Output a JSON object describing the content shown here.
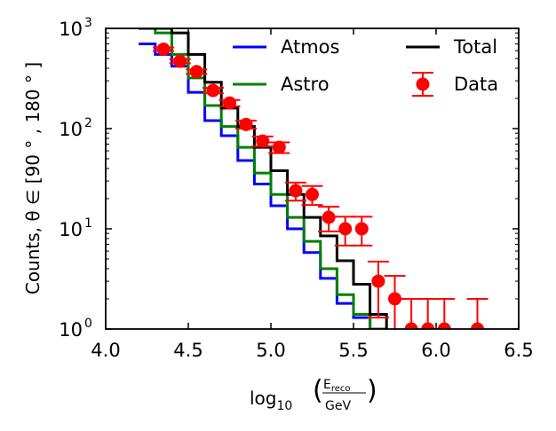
{
  "chart_data": {
    "type": "histogram",
    "xlim": [
      4.0,
      6.5
    ],
    "ylim": [
      1,
      1000
    ],
    "yscale": "log",
    "grid": false,
    "legend_placement": "top-right",
    "x_tick_labels": [
      "4.0",
      "4.5",
      "5.0",
      "5.5",
      "6.0",
      "6.5"
    ],
    "x_tick_values": [
      4.0,
      4.5,
      5.0,
      5.5,
      6.0,
      6.5
    ],
    "y_tick_values": [
      1,
      10,
      100,
      1000
    ],
    "y_tick_labels": {
      "base": "10",
      "exponents": [
        "0",
        "1",
        "2",
        "3"
      ]
    },
    "xlabel": {
      "prefix": "log",
      "sub": "10",
      "frac_num": "E",
      "frac_num_sub": "reco",
      "frac_den": "GeV"
    },
    "ylabel": "Counts,  θ ∈ [90 ° , 180 ° ]",
    "bin_edges": [
      4.2,
      4.3,
      4.4,
      4.5,
      4.6,
      4.7,
      4.8,
      4.9,
      5.0,
      5.1,
      5.2,
      5.3,
      5.4,
      5.5,
      5.6,
      5.7
    ],
    "series": [
      {
        "name": "Atmos",
        "color": "#0000ff",
        "style": "step",
        "values": [
          700,
          550,
          420,
          230,
          120,
          85,
          48,
          28,
          17,
          10,
          5.8,
          3.2,
          1.8,
          1.3,
          1.0
        ]
      },
      {
        "name": "Astro",
        "color": "#008000",
        "style": "step",
        "values": [
          1000,
          900,
          550,
          320,
          170,
          105,
          65,
          36,
          22,
          13,
          7.5,
          4.0,
          2.2,
          1.4,
          1.0
        ]
      },
      {
        "name": "Total",
        "color": "#000000",
        "style": "step",
        "values": [
          1000,
          1000,
          900,
          550,
          290,
          160,
          105,
          65,
          38,
          22,
          13,
          8.5,
          4.8,
          2.8,
          1.4
        ]
      },
      {
        "name": "Data",
        "color": "#ff0000",
        "style": "errorbar",
        "x": [
          4.35,
          4.45,
          4.55,
          4.65,
          4.75,
          4.85,
          4.95,
          5.05,
          5.15,
          5.25,
          5.35,
          5.45,
          5.55,
          5.65,
          5.75,
          5.85,
          5.95,
          6.05,
          6.25
        ],
        "y": [
          620,
          470,
          370,
          240,
          180,
          110,
          75,
          65,
          24,
          22,
          13,
          10,
          10,
          3,
          2,
          1,
          1,
          1,
          1
        ],
        "yerr_low": [
          25,
          22,
          19,
          15,
          13,
          10,
          8.5,
          8,
          4.9,
          4.7,
          3.6,
          3.2,
          3.2,
          1.7,
          1.4,
          0,
          0,
          0,
          0
        ],
        "yerr_high": [
          25,
          22,
          19,
          15,
          13,
          10,
          8.5,
          8,
          4.9,
          4.7,
          3.6,
          3.2,
          3.2,
          1.7,
          1.4,
          1,
          1,
          1,
          1
        ]
      }
    ],
    "legend_order": [
      "Atmos",
      "Total",
      "Astro",
      "Data"
    ]
  }
}
